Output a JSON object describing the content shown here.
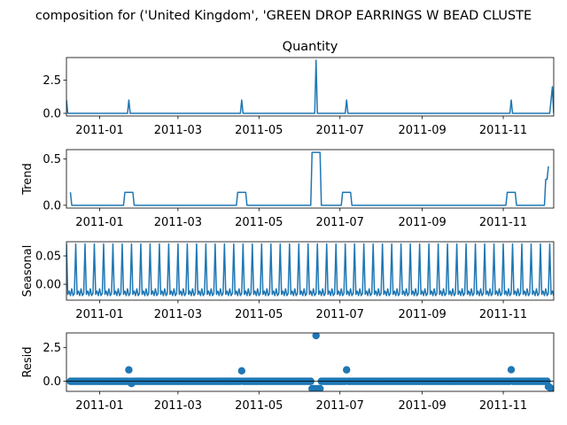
{
  "figure": {
    "suptitle": "composition for ('United Kingdom', 'GREEN DROP EARRINGS W BEAD CLUSTE"
  },
  "chart_data": [
    {
      "type": "line",
      "title": "Quantity",
      "ylabel": "",
      "xlim": [
        "2010-12-07",
        "2011-12-09"
      ],
      "ylim": [
        -0.2,
        4.2
      ],
      "yticks": [
        0.0,
        2.5
      ],
      "ytick_labels": [
        "0.0",
        "2.5"
      ],
      "xticks": [
        "2011-01-01",
        "2011-03-01",
        "2011-05-01",
        "2011-07-01",
        "2011-09-01",
        "2011-11-01"
      ],
      "xtick_labels": [
        "2011-01",
        "2011-03",
        "2011-05",
        "2011-07",
        "2011-09",
        "2011-11"
      ],
      "baseline": 0,
      "series": [
        {
          "color": "#1f77b4",
          "points": [
            {
              "x": "2010-12-07",
              "y": 1
            },
            {
              "x": "2010-12-08",
              "y": 0
            },
            {
              "x": "2011-01-22",
              "y": 0
            },
            {
              "x": "2011-01-23",
              "y": 1
            },
            {
              "x": "2011-01-24",
              "y": 0
            },
            {
              "x": "2011-04-17",
              "y": 0
            },
            {
              "x": "2011-04-18",
              "y": 1
            },
            {
              "x": "2011-04-19",
              "y": 0
            },
            {
              "x": "2011-06-12",
              "y": 0
            },
            {
              "x": "2011-06-13",
              "y": 4
            },
            {
              "x": "2011-06-14",
              "y": 0
            },
            {
              "x": "2011-07-05",
              "y": 0
            },
            {
              "x": "2011-07-06",
              "y": 1
            },
            {
              "x": "2011-07-07",
              "y": 0
            },
            {
              "x": "2011-11-06",
              "y": 0
            },
            {
              "x": "2011-11-07",
              "y": 1
            },
            {
              "x": "2011-11-08",
              "y": 0
            },
            {
              "x": "2011-12-06",
              "y": 0
            },
            {
              "x": "2011-12-08",
              "y": 2
            },
            {
              "x": "2011-12-09",
              "y": 0
            }
          ]
        }
      ]
    },
    {
      "type": "line",
      "title": "",
      "ylabel": "Trend",
      "xlim": [
        "2010-12-07",
        "2011-12-09"
      ],
      "ylim": [
        -0.03,
        0.6
      ],
      "yticks": [
        0.0,
        0.5
      ],
      "ytick_labels": [
        "0.0",
        "0.5"
      ],
      "xticks": [
        "2011-01-01",
        "2011-03-01",
        "2011-05-01",
        "2011-07-01",
        "2011-09-01",
        "2011-11-01"
      ],
      "xtick_labels": [
        "2011-01",
        "2011-03",
        "2011-05",
        "2011-07",
        "2011-09",
        "2011-11"
      ],
      "series": [
        {
          "color": "#1f77b4",
          "points": [
            {
              "x": "2010-12-10",
              "y": 0.14
            },
            {
              "x": "2010-12-11",
              "y": 0
            },
            {
              "x": "2011-01-19",
              "y": 0
            },
            {
              "x": "2011-01-20",
              "y": 0.14
            },
            {
              "x": "2011-01-26",
              "y": 0.14
            },
            {
              "x": "2011-01-27",
              "y": 0
            },
            {
              "x": "2011-04-14",
              "y": 0
            },
            {
              "x": "2011-04-15",
              "y": 0.14
            },
            {
              "x": "2011-04-21",
              "y": 0.14
            },
            {
              "x": "2011-04-22",
              "y": 0
            },
            {
              "x": "2011-06-09",
              "y": 0
            },
            {
              "x": "2011-06-10",
              "y": 0.57
            },
            {
              "x": "2011-06-16",
              "y": 0.57
            },
            {
              "x": "2011-06-17",
              "y": 0
            },
            {
              "x": "2011-07-02",
              "y": 0
            },
            {
              "x": "2011-07-03",
              "y": 0.14
            },
            {
              "x": "2011-07-09",
              "y": 0.14
            },
            {
              "x": "2011-07-10",
              "y": 0
            },
            {
              "x": "2011-11-03",
              "y": 0
            },
            {
              "x": "2011-11-04",
              "y": 0.14
            },
            {
              "x": "2011-11-10",
              "y": 0.14
            },
            {
              "x": "2011-11-11",
              "y": 0
            },
            {
              "x": "2011-12-02",
              "y": 0
            },
            {
              "x": "2011-12-03",
              "y": 0.28
            },
            {
              "x": "2011-12-04",
              "y": 0.28
            },
            {
              "x": "2011-12-05",
              "y": 0.42
            }
          ]
        }
      ]
    },
    {
      "type": "line",
      "title": "",
      "ylabel": "Seasonal",
      "xlim": [
        "2010-12-07",
        "2011-12-09"
      ],
      "ylim": [
        -0.028,
        0.075
      ],
      "yticks": [
        0.0,
        0.05
      ],
      "ytick_labels": [
        "0.00",
        "0.05"
      ],
      "xticks": [
        "2011-01-01",
        "2011-03-01",
        "2011-05-01",
        "2011-07-01",
        "2011-09-01",
        "2011-11-01"
      ],
      "xtick_labels": [
        "2011-01",
        "2011-03",
        "2011-05",
        "2011-07",
        "2011-09",
        "2011-11"
      ],
      "series": [
        {
          "color": "#1f77b4",
          "pattern": {
            "start": "2010-12-07",
            "end": "2011-12-09",
            "period_days": 7,
            "weekly_values": [
              0.071,
              -0.018,
              -0.012,
              -0.02,
              -0.008,
              -0.02,
              -0.016
            ]
          }
        }
      ]
    },
    {
      "type": "scatter",
      "title": "",
      "ylabel": "Resid",
      "xlim": [
        "2010-12-07",
        "2011-12-09"
      ],
      "ylim": [
        -0.75,
        3.6
      ],
      "yticks": [
        0.0,
        2.5
      ],
      "ytick_labels": [
        "0.0",
        "2.5"
      ],
      "xticks": [
        "2011-01-01",
        "2011-03-01",
        "2011-05-01",
        "2011-07-01",
        "2011-09-01",
        "2011-11-01"
      ],
      "xtick_labels": [
        "2011-01",
        "2011-03",
        "2011-05",
        "2011-07",
        "2011-09",
        "2011-11"
      ],
      "baseline": 0,
      "series": [
        {
          "color": "#1f77b4",
          "default_value": 0.0,
          "range": [
            "2010-12-10",
            "2011-12-07"
          ],
          "outliers": [
            {
              "x": "2011-01-23",
              "y": 0.85
            },
            {
              "x": "2011-01-25",
              "y": -0.17
            },
            {
              "x": "2011-04-18",
              "y": 0.78
            },
            {
              "x": "2011-06-10",
              "y": -0.55
            },
            {
              "x": "2011-06-11",
              "y": -0.55
            },
            {
              "x": "2011-06-12",
              "y": -0.55
            },
            {
              "x": "2011-06-13",
              "y": 3.4
            },
            {
              "x": "2011-06-14",
              "y": -0.55
            },
            {
              "x": "2011-06-15",
              "y": -0.55
            },
            {
              "x": "2011-06-16",
              "y": -0.55
            },
            {
              "x": "2011-07-06",
              "y": 0.85
            },
            {
              "x": "2011-11-07",
              "y": 0.86
            },
            {
              "x": "2011-12-05",
              "y": -0.4
            },
            {
              "x": "2011-12-06",
              "y": -0.45
            },
            {
              "x": "2011-12-07",
              "y": -0.55
            }
          ]
        }
      ]
    }
  ]
}
